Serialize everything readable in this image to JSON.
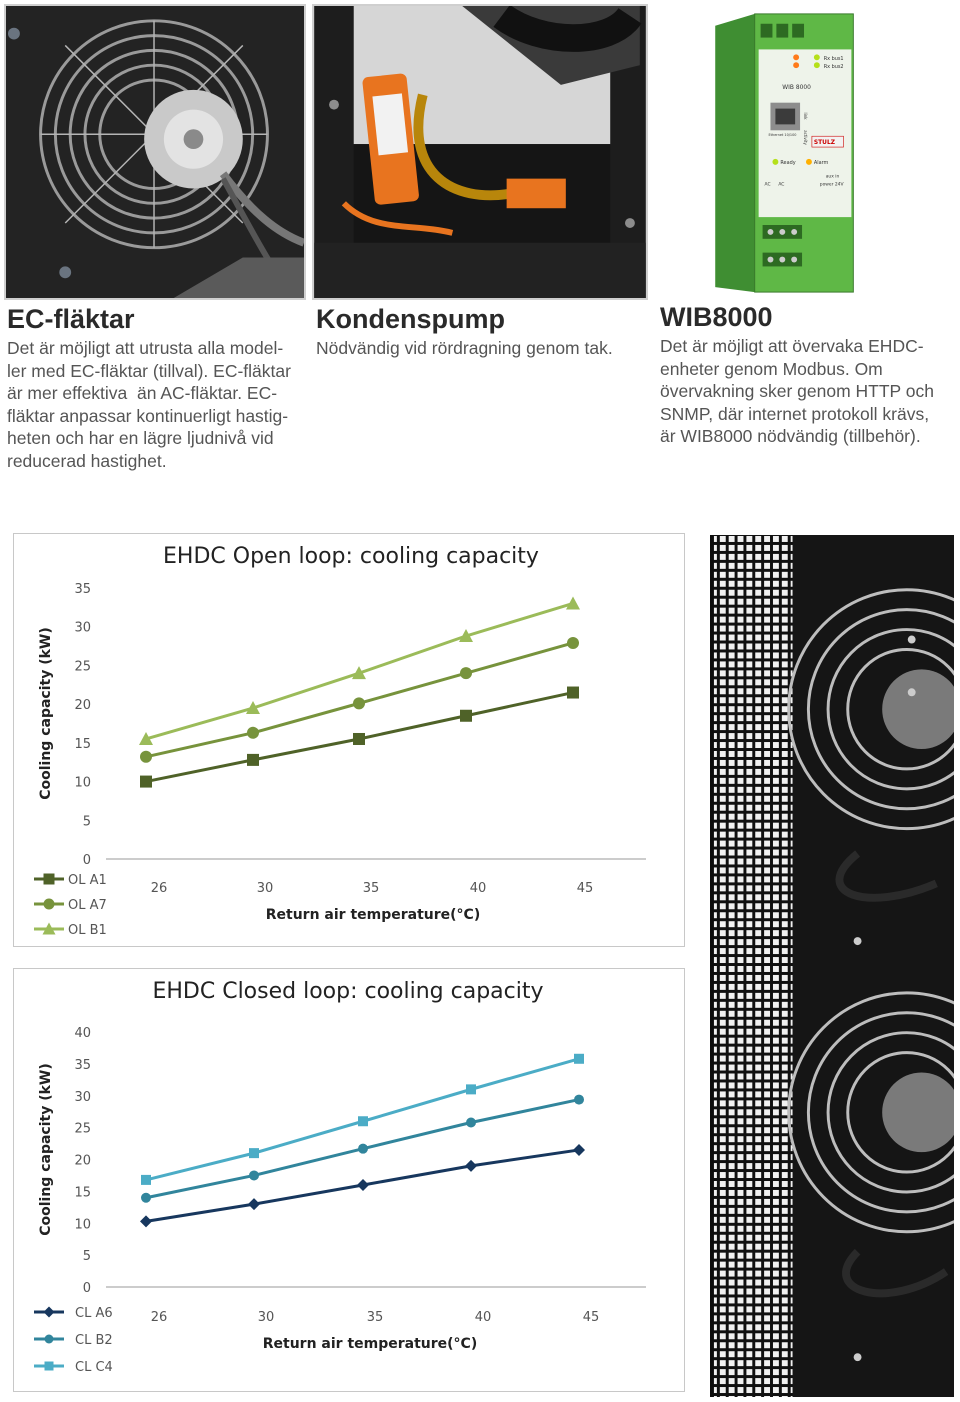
{
  "sections": {
    "ec": {
      "title": "EC-fläktar",
      "lines": [
        "Det är möjligt att utrusta alla model-",
        "ler med EC-fläktar (tillval). EC-fläktar",
        "är mer effektiva  än AC-fläktar. EC-",
        "fläktar anpassar kontinuerligt hastig-",
        "heten och har en lägre ljudnivå vid",
        "reducerad hastighet."
      ]
    },
    "pump": {
      "title": "Kondenspump",
      "lines": [
        "Nödvändig vid rördragning genom tak."
      ]
    },
    "wib": {
      "title": "WIB8000",
      "lines": [
        "Det är möjligt att övervaka EHDC-",
        "enheter genom Modbus. Om",
        "övervakning sker genom HTTP och",
        "SNMP, där internet protokoll krävs,",
        "är WIB8000 nödvändig (tillbehör)."
      ]
    }
  },
  "device_labels": {
    "model": "WIB 8000",
    "brand": "STULZ",
    "ready": "Ready",
    "alarm": "Alarm",
    "rx1": "Rx bus1",
    "rx2": "Rx bus2",
    "power": "power 24V",
    "ac1": "AC",
    "ac2": "AC",
    "aux": "aux in",
    "ethernet": "Ethernet 10/100",
    "link": "link",
    "activity": "activity"
  },
  "colors": {
    "ol_a1": "#4f6228",
    "ol_a7": "#77933c",
    "ol_b1": "#9bbb59",
    "cl_a6": "#17375e",
    "cl_b2": "#31859c",
    "cl_c4": "#4bacc6",
    "wib_green": "#5fb846"
  },
  "chart_data": [
    {
      "type": "line",
      "title": "EHDC Open loop: cooling capacity",
      "xlabel": "Return air temperature(°C)",
      "ylabel": "Cooling capacity (kW)",
      "categories": [
        "26",
        "30",
        "35",
        "40",
        "45"
      ],
      "ylim": [
        0,
        35
      ],
      "yticks": [
        "0",
        "5",
        "10",
        "15",
        "20",
        "25",
        "30",
        "35"
      ],
      "grid": false,
      "legend": "bottom-left",
      "series": [
        {
          "name": "OL A1",
          "values": [
            10,
            12.8,
            15.5,
            18.5,
            21.5
          ],
          "marker": "square",
          "color_key": "ol_a1"
        },
        {
          "name": "OL A7",
          "values": [
            13.2,
            16.3,
            20.1,
            24,
            27.9
          ],
          "marker": "circle",
          "color_key": "ol_a7"
        },
        {
          "name": "OL B1",
          "values": [
            15.5,
            19.5,
            24,
            28.8,
            33
          ],
          "marker": "triangle",
          "color_key": "ol_b1"
        }
      ]
    },
    {
      "type": "line",
      "title": "EHDC Closed loop: cooling capacity",
      "xlabel": "Return air temperature(°C)",
      "ylabel": "Cooling capacity (kW)",
      "categories": [
        "26",
        "30",
        "35",
        "40",
        "45"
      ],
      "ylim": [
        0,
        40
      ],
      "yticks": [
        "0",
        "5",
        "10",
        "15",
        "20",
        "25",
        "30",
        "35",
        "40"
      ],
      "grid": false,
      "legend": "bottom-left",
      "series": [
        {
          "name": "CL A6",
          "values": [
            10.3,
            13,
            16,
            19,
            21.5
          ],
          "marker": "diamond",
          "color_key": "cl_a6"
        },
        {
          "name": "CL B2",
          "values": [
            14,
            17.5,
            21.7,
            25.8,
            29.4
          ],
          "marker": "circle",
          "color_key": "cl_b2"
        },
        {
          "name": "CL C4",
          "values": [
            16.8,
            21,
            26,
            31,
            35.8
          ],
          "marker": "square",
          "color_key": "cl_c4"
        }
      ]
    }
  ]
}
